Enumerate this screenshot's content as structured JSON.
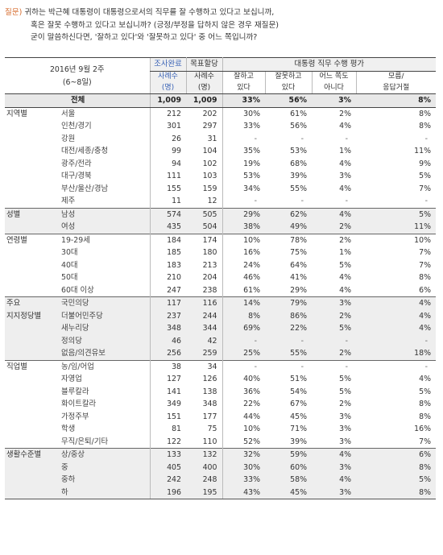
{
  "question": {
    "label": "질문)",
    "line1": " 귀하는 박근혜 대통령이 대통령으로서의 직무를 잘 수행하고 있다고 보십니까,",
    "line2": "혹은 잘못 수행하고 있다고 보십니까? (긍정/부정을 답하지 않은 경우 재질문)",
    "line3": "굳이 말씀하신다면, '잘하고 있다'와 '잘못하고 있다' 중 어느 쪽입니까?"
  },
  "header": {
    "date_line1": "2016년 9월 2주",
    "date_line2": "(6~8일)",
    "survey_complete": "조사완료",
    "target_alloc": "목표할당",
    "samples_label_1": "사례수",
    "samples_label_2": "(명)",
    "group_title": "대통령 직무 수행 평가",
    "col_good_1": "잘하고",
    "col_good_2": "있다",
    "col_bad_1": "잘못하고",
    "col_bad_2": "있다",
    "col_neither_1": "어느 쪽도",
    "col_neither_2": "아니다",
    "col_dk_1": "모름/",
    "col_dk_2": "응답거절"
  },
  "rows": [
    {
      "cat": "",
      "sub": "전체",
      "n": "1,009",
      "t": "1,009",
      "good": "33%",
      "bad": "56%",
      "neither": "3%",
      "dk": "8%",
      "style": "total"
    },
    {
      "cat": "지역별",
      "sub": "서울",
      "n": "212",
      "t": "202",
      "good": "30%",
      "bad": "61%",
      "neither": "2%",
      "dk": "8%",
      "style": "grp"
    },
    {
      "cat": "",
      "sub": "인천/경기",
      "n": "301",
      "t": "297",
      "good": "33%",
      "bad": "56%",
      "neither": "4%",
      "dk": "8%",
      "style": ""
    },
    {
      "cat": "",
      "sub": "강원",
      "n": "26",
      "t": "31",
      "good": "-",
      "bad": "-",
      "neither": "-",
      "dk": "-",
      "style": ""
    },
    {
      "cat": "",
      "sub": "대전/세종/충청",
      "n": "99",
      "t": "104",
      "good": "35%",
      "bad": "53%",
      "neither": "1%",
      "dk": "11%",
      "style": ""
    },
    {
      "cat": "",
      "sub": "광주/전라",
      "n": "94",
      "t": "102",
      "good": "19%",
      "bad": "68%",
      "neither": "4%",
      "dk": "9%",
      "style": ""
    },
    {
      "cat": "",
      "sub": "대구/경북",
      "n": "111",
      "t": "103",
      "good": "53%",
      "bad": "39%",
      "neither": "3%",
      "dk": "5%",
      "style": ""
    },
    {
      "cat": "",
      "sub": "부산/울산/경남",
      "n": "155",
      "t": "159",
      "good": "34%",
      "bad": "55%",
      "neither": "4%",
      "dk": "7%",
      "style": ""
    },
    {
      "cat": "",
      "sub": "제주",
      "n": "11",
      "t": "12",
      "good": "-",
      "bad": "-",
      "neither": "-",
      "dk": "-",
      "style": ""
    },
    {
      "cat": "성별",
      "sub": "남성",
      "n": "574",
      "t": "505",
      "good": "29%",
      "bad": "62%",
      "neither": "4%",
      "dk": "5%",
      "style": "grp shade"
    },
    {
      "cat": "",
      "sub": "여성",
      "n": "435",
      "t": "504",
      "good": "38%",
      "bad": "49%",
      "neither": "2%",
      "dk": "11%",
      "style": "shade"
    },
    {
      "cat": "연령별",
      "sub": "19-29세",
      "n": "184",
      "t": "174",
      "good": "10%",
      "bad": "78%",
      "neither": "2%",
      "dk": "10%",
      "style": "grp"
    },
    {
      "cat": "",
      "sub": "30대",
      "n": "185",
      "t": "180",
      "good": "16%",
      "bad": "75%",
      "neither": "1%",
      "dk": "7%",
      "style": ""
    },
    {
      "cat": "",
      "sub": "40대",
      "n": "183",
      "t": "213",
      "good": "24%",
      "bad": "64%",
      "neither": "5%",
      "dk": "7%",
      "style": ""
    },
    {
      "cat": "",
      "sub": "50대",
      "n": "210",
      "t": "204",
      "good": "46%",
      "bad": "41%",
      "neither": "4%",
      "dk": "8%",
      "style": ""
    },
    {
      "cat": "",
      "sub": "60대 이상",
      "n": "247",
      "t": "238",
      "good": "61%",
      "bad": "29%",
      "neither": "4%",
      "dk": "6%",
      "style": ""
    },
    {
      "cat": "주요",
      "sub": "국민의당",
      "n": "117",
      "t": "116",
      "good": "14%",
      "bad": "79%",
      "neither": "3%",
      "dk": "4%",
      "style": "grp shade"
    },
    {
      "cat": "지지정당별",
      "sub": "더불어민주당",
      "n": "237",
      "t": "244",
      "good": "8%",
      "bad": "86%",
      "neither": "2%",
      "dk": "4%",
      "style": "shade"
    },
    {
      "cat": "",
      "sub": "새누리당",
      "n": "348",
      "t": "344",
      "good": "69%",
      "bad": "22%",
      "neither": "5%",
      "dk": "4%",
      "style": "shade"
    },
    {
      "cat": "",
      "sub": "정의당",
      "n": "46",
      "t": "42",
      "good": "-",
      "bad": "-",
      "neither": "-",
      "dk": "-",
      "style": "shade"
    },
    {
      "cat": "",
      "sub": "없음/의견유보",
      "n": "256",
      "t": "259",
      "good": "25%",
      "bad": "55%",
      "neither": "2%",
      "dk": "18%",
      "style": "shade"
    },
    {
      "cat": "직업별",
      "sub": "농/임/어업",
      "n": "38",
      "t": "34",
      "good": "-",
      "bad": "-",
      "neither": "-",
      "dk": "-",
      "style": "grp"
    },
    {
      "cat": "",
      "sub": "자영업",
      "n": "127",
      "t": "126",
      "good": "40%",
      "bad": "51%",
      "neither": "5%",
      "dk": "4%",
      "style": ""
    },
    {
      "cat": "",
      "sub": "블루칼라",
      "n": "141",
      "t": "138",
      "good": "36%",
      "bad": "54%",
      "neither": "5%",
      "dk": "5%",
      "style": ""
    },
    {
      "cat": "",
      "sub": "화이트칼라",
      "n": "349",
      "t": "348",
      "good": "22%",
      "bad": "67%",
      "neither": "2%",
      "dk": "8%",
      "style": ""
    },
    {
      "cat": "",
      "sub": "가정주부",
      "n": "151",
      "t": "177",
      "good": "44%",
      "bad": "45%",
      "neither": "3%",
      "dk": "8%",
      "style": ""
    },
    {
      "cat": "",
      "sub": "학생",
      "n": "81",
      "t": "75",
      "good": "10%",
      "bad": "71%",
      "neither": "3%",
      "dk": "16%",
      "style": ""
    },
    {
      "cat": "",
      "sub": "무직/은퇴/기타",
      "n": "122",
      "t": "110",
      "good": "52%",
      "bad": "39%",
      "neither": "3%",
      "dk": "7%",
      "style": ""
    },
    {
      "cat": "생활수준별",
      "sub": "상/중상",
      "n": "133",
      "t": "132",
      "good": "32%",
      "bad": "59%",
      "neither": "4%",
      "dk": "6%",
      "style": "grp shade"
    },
    {
      "cat": "",
      "sub": "중",
      "n": "405",
      "t": "400",
      "good": "30%",
      "bad": "60%",
      "neither": "3%",
      "dk": "8%",
      "style": "shade"
    },
    {
      "cat": "",
      "sub": "중하",
      "n": "242",
      "t": "248",
      "good": "33%",
      "bad": "58%",
      "neither": "4%",
      "dk": "5%",
      "style": "shade"
    },
    {
      "cat": "",
      "sub": "하",
      "n": "196",
      "t": "195",
      "good": "43%",
      "bad": "45%",
      "neither": "3%",
      "dk": "8%",
      "style": "shade last"
    }
  ]
}
